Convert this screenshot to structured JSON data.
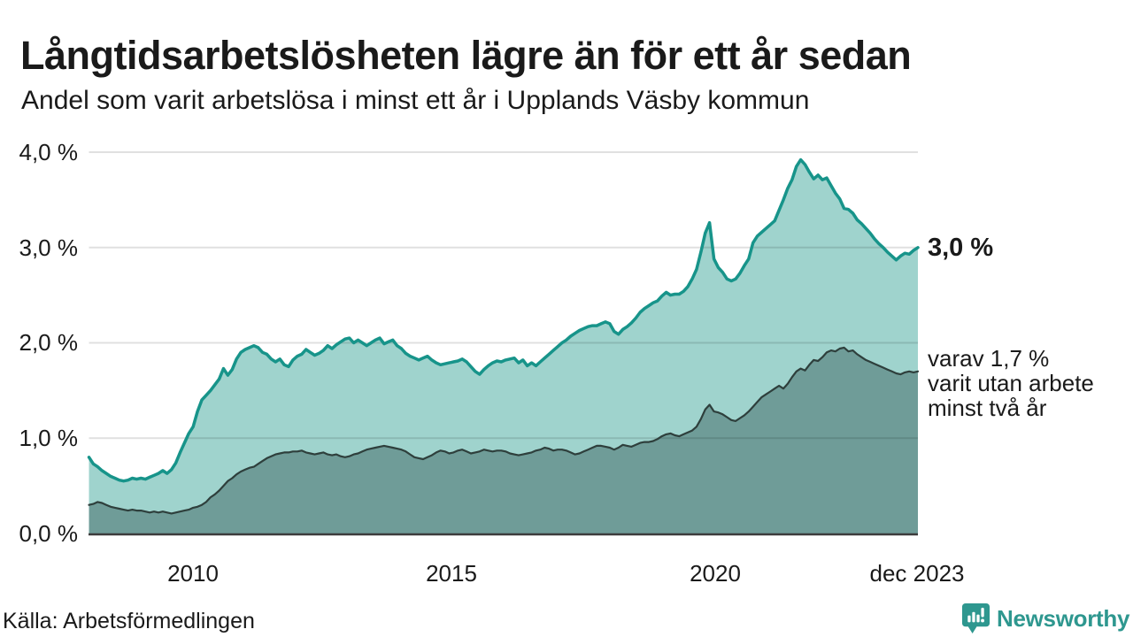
{
  "header": {
    "title": "Långtidsarbetslösheten lägre än för ett år sedan",
    "subtitle": "Andel som varit arbetslösa i minst ett år i Upplands Väsby kommun"
  },
  "chart_data": {
    "type": "area",
    "title": "Långtidsarbetslösheten lägre än för ett år sedan",
    "subtitle": "Andel som varit arbetslösa i minst ett år i Upplands Väsby kommun",
    "unit": "%",
    "ylim": [
      0,
      4
    ],
    "grid": true,
    "x_range": [
      "2008-01",
      "2023-12"
    ],
    "frequency": "monthly",
    "y_ticks": [
      {
        "value": 4,
        "label": "4,0 %"
      },
      {
        "value": 3,
        "label": "3,0 %"
      },
      {
        "value": 2,
        "label": "2,0 %"
      },
      {
        "value": 1,
        "label": "1,0 %"
      },
      {
        "value": 0,
        "label": "0,0 %"
      }
    ],
    "x_ticks": [
      {
        "label": "2010"
      },
      {
        "label": "2015"
      },
      {
        "label": "2020"
      },
      {
        "label": "dec 2023"
      }
    ],
    "colors": {
      "grid": "rgba(0,0,0,0.12)",
      "baseline": "#3c3c3c"
    },
    "series": [
      {
        "key": "arbetslosa-minst-ett-ar",
        "color": "#17948a",
        "fill": "#9fd3cd",
        "width": 3.5,
        "last_value": 3.0,
        "values": [
          0.8,
          0.73,
          0.7,
          0.66,
          0.63,
          0.6,
          0.58,
          0.56,
          0.55,
          0.56,
          0.58,
          0.57,
          0.58,
          0.57,
          0.59,
          0.61,
          0.63,
          0.66,
          0.63,
          0.67,
          0.74,
          0.85,
          0.95,
          1.05,
          1.12,
          1.28,
          1.4,
          1.45,
          1.5,
          1.56,
          1.62,
          1.73,
          1.66,
          1.72,
          1.83,
          1.9,
          1.93,
          1.95,
          1.97,
          1.95,
          1.9,
          1.88,
          1.83,
          1.8,
          1.83,
          1.77,
          1.75,
          1.82,
          1.86,
          1.88,
          1.93,
          1.9,
          1.87,
          1.89,
          1.92,
          1.97,
          1.94,
          1.98,
          2.01,
          2.04,
          2.05,
          2.0,
          2.03,
          2.0,
          1.97,
          2.0,
          2.03,
          2.05,
          1.99,
          2.01,
          2.03,
          1.97,
          1.94,
          1.89,
          1.86,
          1.84,
          1.82,
          1.84,
          1.86,
          1.82,
          1.79,
          1.77,
          1.78,
          1.79,
          1.8,
          1.81,
          1.83,
          1.8,
          1.75,
          1.7,
          1.67,
          1.72,
          1.76,
          1.79,
          1.81,
          1.8,
          1.82,
          1.83,
          1.84,
          1.79,
          1.82,
          1.76,
          1.79,
          1.76,
          1.8,
          1.84,
          1.88,
          1.92,
          1.96,
          2.0,
          2.03,
          2.07,
          2.1,
          2.13,
          2.15,
          2.17,
          2.18,
          2.18,
          2.2,
          2.22,
          2.2,
          2.12,
          2.09,
          2.14,
          2.17,
          2.21,
          2.26,
          2.32,
          2.36,
          2.39,
          2.42,
          2.44,
          2.49,
          2.53,
          2.5,
          2.51,
          2.51,
          2.54,
          2.59,
          2.67,
          2.77,
          2.95,
          3.15,
          3.26,
          2.88,
          2.79,
          2.74,
          2.67,
          2.65,
          2.67,
          2.73,
          2.81,
          2.88,
          3.05,
          3.12,
          3.16,
          3.2,
          3.24,
          3.28,
          3.39,
          3.5,
          3.62,
          3.71,
          3.85,
          3.92,
          3.87,
          3.79,
          3.72,
          3.76,
          3.71,
          3.73,
          3.65,
          3.57,
          3.51,
          3.41,
          3.4,
          3.36,
          3.29,
          3.25,
          3.2,
          3.15,
          3.09,
          3.04,
          3.0,
          2.95,
          2.91,
          2.87,
          2.91,
          2.94,
          2.93,
          2.97,
          3.0
        ]
      },
      {
        "key": "utan-arbete-minst-tva-ar",
        "color": "#2e3f3c",
        "fill": "#6f9c98",
        "width": 2.2,
        "last_value": 1.7,
        "values": [
          0.3,
          0.31,
          0.33,
          0.32,
          0.3,
          0.28,
          0.27,
          0.26,
          0.25,
          0.24,
          0.25,
          0.24,
          0.24,
          0.23,
          0.22,
          0.23,
          0.22,
          0.23,
          0.22,
          0.21,
          0.22,
          0.23,
          0.24,
          0.25,
          0.27,
          0.28,
          0.3,
          0.33,
          0.38,
          0.41,
          0.45,
          0.5,
          0.55,
          0.58,
          0.62,
          0.65,
          0.67,
          0.69,
          0.7,
          0.73,
          0.76,
          0.79,
          0.81,
          0.83,
          0.84,
          0.85,
          0.85,
          0.86,
          0.86,
          0.87,
          0.85,
          0.84,
          0.83,
          0.84,
          0.85,
          0.83,
          0.82,
          0.83,
          0.81,
          0.8,
          0.81,
          0.83,
          0.84,
          0.86,
          0.88,
          0.89,
          0.9,
          0.91,
          0.92,
          0.91,
          0.9,
          0.89,
          0.88,
          0.86,
          0.83,
          0.8,
          0.79,
          0.78,
          0.8,
          0.82,
          0.85,
          0.87,
          0.86,
          0.84,
          0.85,
          0.87,
          0.88,
          0.86,
          0.84,
          0.85,
          0.86,
          0.88,
          0.87,
          0.86,
          0.87,
          0.87,
          0.86,
          0.84,
          0.83,
          0.82,
          0.83,
          0.84,
          0.85,
          0.87,
          0.88,
          0.9,
          0.89,
          0.87,
          0.88,
          0.88,
          0.87,
          0.85,
          0.83,
          0.84,
          0.86,
          0.88,
          0.9,
          0.92,
          0.92,
          0.91,
          0.9,
          0.88,
          0.9,
          0.93,
          0.92,
          0.91,
          0.93,
          0.95,
          0.96,
          0.96,
          0.97,
          0.99,
          1.02,
          1.04,
          1.05,
          1.03,
          1.02,
          1.04,
          1.06,
          1.08,
          1.12,
          1.2,
          1.3,
          1.35,
          1.28,
          1.27,
          1.25,
          1.22,
          1.19,
          1.18,
          1.21,
          1.24,
          1.28,
          1.33,
          1.38,
          1.43,
          1.46,
          1.49,
          1.52,
          1.55,
          1.52,
          1.57,
          1.64,
          1.7,
          1.73,
          1.71,
          1.77,
          1.82,
          1.81,
          1.85,
          1.9,
          1.92,
          1.91,
          1.94,
          1.95,
          1.91,
          1.92,
          1.88,
          1.85,
          1.82,
          1.8,
          1.78,
          1.76,
          1.74,
          1.72,
          1.7,
          1.68,
          1.67,
          1.69,
          1.7,
          1.69,
          1.7
        ]
      }
    ],
    "annotations": {
      "end_label": "3,0 %",
      "note_lines": [
        "varav 1,7 %",
        "varit utan arbete",
        "minst två år"
      ]
    }
  },
  "footer": {
    "source": "Källa: Arbetsförmedlingen",
    "brand": "Newsworthy",
    "brand_color": "#2e978f"
  }
}
